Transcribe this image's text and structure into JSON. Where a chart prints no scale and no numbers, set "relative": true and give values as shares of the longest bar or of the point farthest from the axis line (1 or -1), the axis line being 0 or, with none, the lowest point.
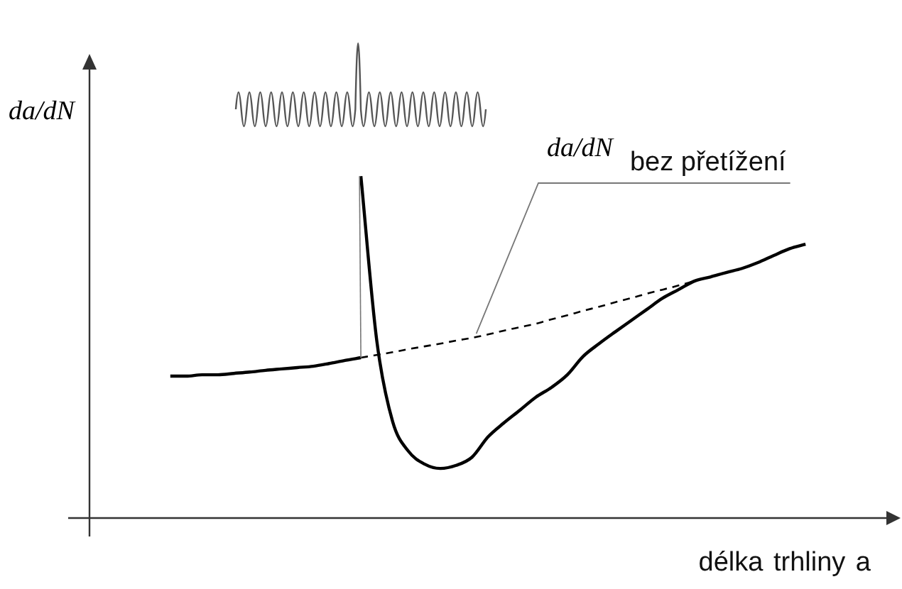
{
  "chart_data": {
    "type": "line",
    "relative": true,
    "ylabel": "da/dN",
    "xlabel": "délka trhliny a",
    "annotations": [
      "da/dN bez přetížení"
    ],
    "categories": [
      null,
      null,
      null,
      null,
      null,
      null,
      null,
      null,
      null,
      null,
      null,
      null,
      null,
      null,
      null,
      null,
      null,
      null,
      null,
      null,
      null,
      null,
      null,
      null,
      null,
      null,
      null,
      null,
      null,
      null,
      null,
      null,
      null,
      null,
      null,
      null,
      null,
      null,
      null,
      null,
      null,
      null,
      null,
      null,
      null,
      null,
      null,
      null,
      null,
      null,
      null
    ],
    "series": [
      {
        "color": "#000000",
        "values": [
          null,
          null,
          null,
          null,
          null,
          0.415,
          0.415,
          0.419,
          0.419,
          0.423,
          0.427,
          0.432,
          0.436,
          0.44,
          0.444,
          0.452,
          0.461,
          0.469,
          null,
          null,
          null,
          null,
          null,
          null,
          null,
          null,
          null,
          null,
          null,
          null,
          null,
          null,
          null,
          null,
          null,
          null,
          null,
          null,
          null,
          null,
          null,
          null,
          null,
          null,
          null,
          null,
          null,
          null,
          null,
          null,
          null
        ]
      },
      {
        "color": "#000000",
        "values": [
          null,
          null,
          null,
          null,
          null,
          null,
          null,
          null,
          null,
          null,
          null,
          null,
          null,
          null,
          null,
          null,
          null,
          1.0,
          0.519,
          0.282,
          0.195,
          0.158,
          0.145,
          0.154,
          0.178,
          0.237,
          0.278,
          0.315,
          0.353,
          0.382,
          0.419,
          0.473,
          0.51,
          0.544,
          0.577,
          0.61,
          0.643,
          0.668,
          0.693,
          0.705,
          0.718,
          0.73,
          0.747,
          0.768,
          0.788,
          0.801,
          null,
          null,
          null,
          null,
          null
        ]
      },
      {
        "color": "#000000",
        "line_style": "dashed",
        "values": [
          null,
          null,
          null,
          null,
          null,
          null,
          null,
          null,
          null,
          null,
          null,
          null,
          null,
          null,
          null,
          null,
          null,
          0.469,
          0.477,
          0.485,
          0.494,
          0.502,
          0.51,
          0.519,
          0.527,
          0.537,
          0.548,
          0.558,
          0.568,
          0.581,
          0.593,
          0.606,
          0.618,
          0.631,
          0.643,
          0.656,
          0.668,
          0.68,
          0.693,
          null,
          null,
          null,
          null,
          null,
          null,
          null,
          null,
          null,
          null,
          null,
          null
        ]
      }
    ]
  }
}
